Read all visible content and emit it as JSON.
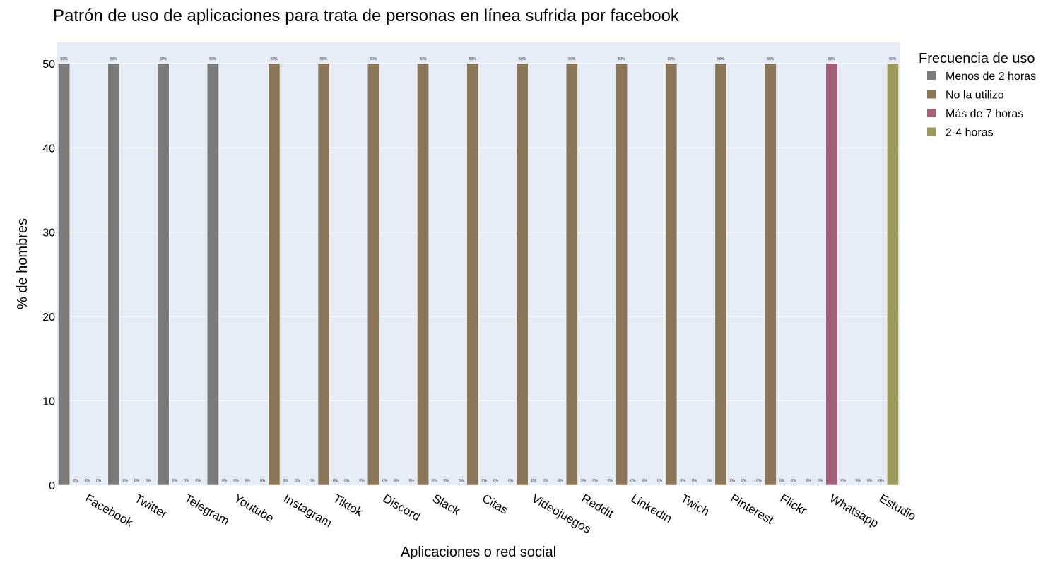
{
  "chart_data": {
    "type": "bar",
    "title": "Patrón de uso de aplicaciones para trata de personas en línea sufrida por facebook",
    "xlabel": "Aplicaciones o red social",
    "ylabel": "% de hombres",
    "ylim": [
      0,
      52.5
    ],
    "yticks": [
      "0",
      "10",
      "20",
      "30",
      "40",
      "50"
    ],
    "grid": true,
    "legend_title": "Frecuencia de uso",
    "legend_position": "top-right",
    "categories": [
      "Facebook",
      "Twitter",
      "Telegram",
      "Youtube",
      "Instagram",
      "Tiktok",
      "Discord",
      "Slack",
      "Citas",
      "Videojuegos",
      "Reddit",
      "Linkedin",
      "Twich",
      "Pinterest",
      "Flickr",
      "Whatsapp",
      "Estudio"
    ],
    "series": [
      {
        "name": "Menos de 2 horas",
        "color": "#7a7a7a",
        "values": [
          50,
          50,
          50,
          50,
          0,
          0,
          0,
          0,
          0,
          0,
          0,
          0,
          0,
          0,
          0,
          0,
          0
        ],
        "labels": [
          "50%",
          "50%",
          "50%",
          "50%",
          "0%",
          "0%",
          "0%",
          "0%",
          "0%",
          "0%",
          "0%",
          "0%",
          "0%",
          "0%",
          "0%",
          "0%",
          "0%"
        ]
      },
      {
        "name": "No la utilizo",
        "color": "#8b7558",
        "values": [
          0,
          0,
          0,
          0,
          50,
          50,
          50,
          50,
          50,
          50,
          50,
          50,
          50,
          50,
          50,
          0,
          0
        ],
        "labels": [
          "0%",
          "0%",
          "0%",
          "0%",
          "50%",
          "50%",
          "50%",
          "50%",
          "50%",
          "50%",
          "50%",
          "50%",
          "50%",
          "50%",
          "50%",
          "0%",
          "0%"
        ]
      },
      {
        "name": "Más de 7 horas",
        "color": "#a3607a",
        "values": [
          0,
          0,
          0,
          0,
          0,
          0,
          0,
          0,
          0,
          0,
          0,
          0,
          0,
          0,
          0,
          50,
          0
        ],
        "labels": [
          "0%",
          "0%",
          "0%",
          "0%",
          "0%",
          "0%",
          "0%",
          "0%",
          "0%",
          "0%",
          "0%",
          "0%",
          "0%",
          "0%",
          "0%",
          "50%",
          "0%"
        ]
      },
      {
        "name": "2-4 horas",
        "color": "#9b9a5c",
        "values": [
          0,
          0,
          0,
          0,
          0,
          0,
          0,
          0,
          0,
          0,
          0,
          0,
          0,
          0,
          0,
          0,
          50
        ],
        "labels": [
          "0%",
          "0%",
          "0%",
          "0%",
          "0%",
          "0%",
          "0%",
          "0%",
          "0%",
          "0%",
          "0%",
          "0%",
          "0%",
          "0%",
          "0%",
          "0%",
          "50%"
        ]
      }
    ],
    "plot_bg": "#e5ecf6",
    "grid_color": "#ffffff"
  }
}
